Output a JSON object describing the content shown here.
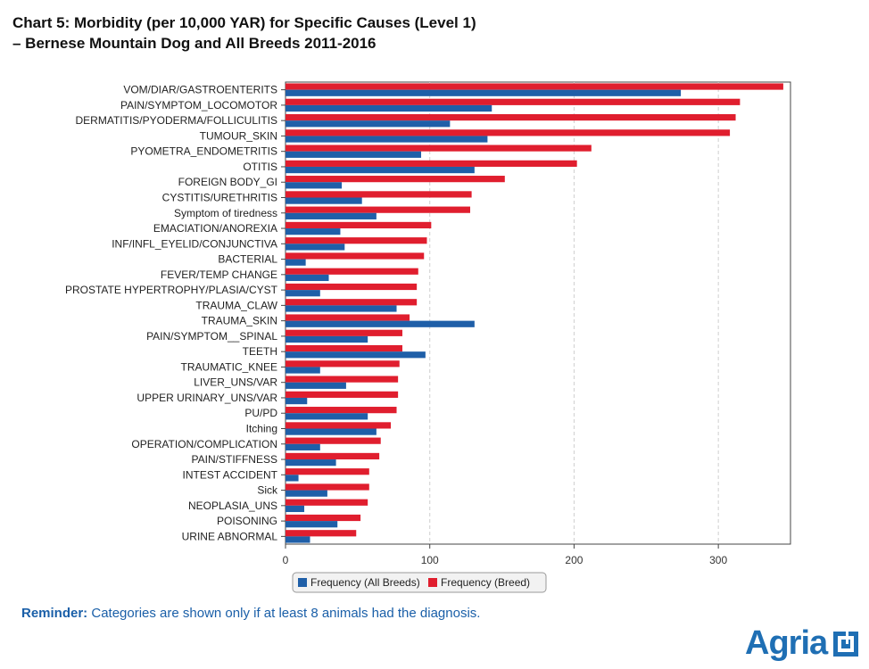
{
  "page": {
    "title_line1": "Chart 5: Morbidity (per 10,000 YAR) for Specific Causes (Level 1)",
    "title_line2": "–  Bernese Mountain Dog and All Breeds 2011-2016",
    "reminder_label": "Reminder:",
    "reminder_text": " Categories are shown only if at least 8 animals had the diagnosis.",
    "logo_text": "Agria",
    "logo_icon": "agria-logo-icon",
    "colors": {
      "all_breeds": "#1f5fa8",
      "breed": "#e01e2e",
      "grid": "#cfcfcf",
      "text_blue": "#1a5fa8"
    }
  },
  "chart_data": {
    "type": "bar",
    "orientation": "horizontal",
    "title": "Chart 5: Morbidity (per 10,000 YAR) for Specific Causes (Level 1) – Bernese Mountain Dog and All Breeds 2011-2016",
    "xlabel": "",
    "ylabel": "",
    "xlim": [
      0,
      350
    ],
    "xticks": [
      0,
      100,
      200,
      300
    ],
    "grid": "vertical-dashed",
    "legend_position": "bottom",
    "categories": [
      "VOM/DIAR/GASTROENTERITS",
      "PAIN/SYMPTOM_LOCOMOTOR",
      "DERMATITIS/PYODERMA/FOLLICULITIS",
      "TUMOUR_SKIN",
      "PYOMETRA_ENDOMETRITIS",
      "OTITIS",
      "FOREIGN BODY_GI",
      "CYSTITIS/URETHRITIS",
      "Symptom of tiredness",
      "EMACIATION/ANOREXIA",
      "INF/INFL_EYELID/CONJUNCTIVA",
      "BACTERIAL",
      "FEVER/TEMP CHANGE",
      "PROSTATE HYPERTROPHY/PLASIA/CYST",
      "TRAUMA_CLAW",
      "TRAUMA_SKIN",
      "PAIN/SYMPTOM__SPINAL",
      "TEETH",
      "TRAUMATIC_KNEE",
      "LIVER_UNS/VAR",
      "UPPER URINARY_UNS/VAR",
      "PU/PD",
      "Itching",
      "OPERATION/COMPLICATION",
      "PAIN/STIFFNESS",
      "INTEST ACCIDENT",
      "Sick",
      "NEOPLASIA_UNS",
      "POISONING",
      "URINE ABNORMAL"
    ],
    "series": [
      {
        "name": "Frequency (All Breeds)",
        "color": "#1f5fa8",
        "values": [
          274,
          143,
          114,
          140,
          94,
          131,
          39,
          53,
          63,
          38,
          41,
          14,
          30,
          24,
          77,
          131,
          57,
          97,
          24,
          42,
          15,
          57,
          63,
          24,
          35,
          9,
          29,
          13,
          36,
          17
        ]
      },
      {
        "name": "Frequency (Breed)",
        "color": "#e01e2e",
        "values": [
          345,
          315,
          312,
          308,
          212,
          202,
          152,
          129,
          128,
          101,
          98,
          96,
          92,
          91,
          91,
          86,
          81,
          81,
          79,
          78,
          78,
          77,
          73,
          66,
          65,
          58,
          58,
          57,
          52,
          49
        ]
      }
    ]
  }
}
